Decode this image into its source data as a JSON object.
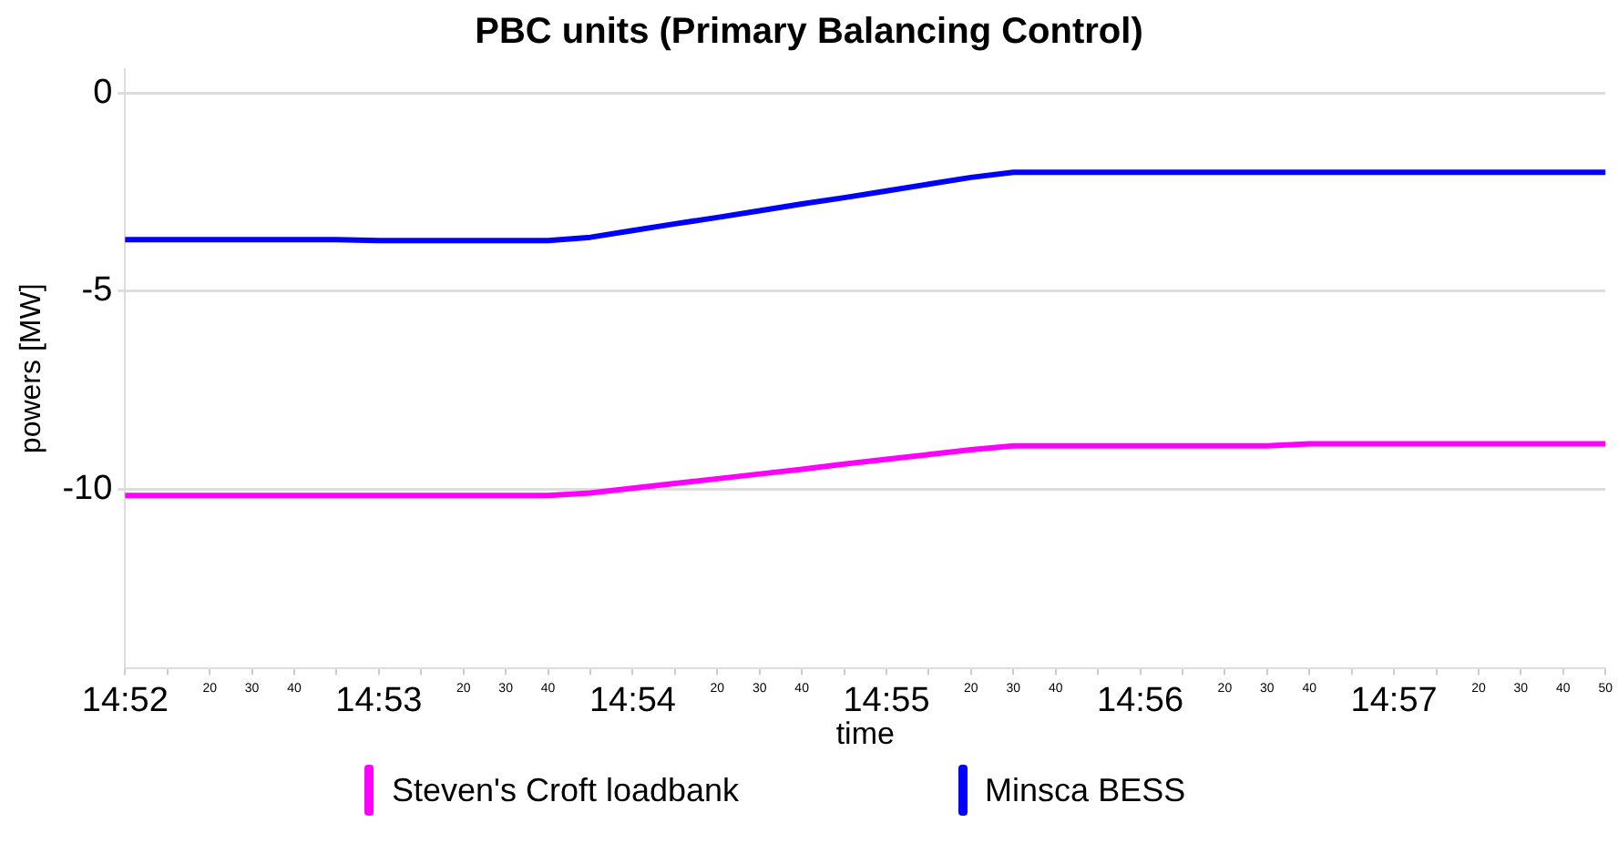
{
  "chart_data": {
    "type": "line",
    "title": "PBC units (Primary Balancing Control)",
    "xlabel": "time",
    "ylabel": "powers [MW]",
    "ylim": [
      -14.5,
      0.6
    ],
    "yticks": [
      0,
      -5,
      -10
    ],
    "categories": [
      "14:52",
      null,
      "20",
      "30",
      "40",
      null,
      "14:53",
      null,
      "20",
      "30",
      "40",
      null,
      "14:54",
      null,
      "20",
      "30",
      "40",
      null,
      "14:55",
      null,
      "20",
      "30",
      "40",
      null,
      "14:56",
      null,
      "20",
      "30",
      "40",
      null,
      "14:57",
      null,
      "20",
      "30",
      "40",
      "50"
    ],
    "series": [
      {
        "name": "Steven's Croft loadbank",
        "color": "#ff00ff",
        "values": [
          -10.15,
          -10.15,
          -10.15,
          -10.15,
          -10.15,
          -10.15,
          -10.15,
          -10.15,
          -10.15,
          -10.15,
          -10.15,
          -10.09,
          -9.97,
          -9.85,
          -9.73,
          -9.61,
          -9.49,
          -9.36,
          -9.24,
          -9.12,
          -9.0,
          -8.9,
          -8.9,
          -8.9,
          -8.9,
          -8.9,
          -8.9,
          -8.9,
          -8.85,
          -8.85,
          -8.85,
          -8.85,
          -8.85,
          -8.85,
          -8.85,
          -8.85
        ]
      },
      {
        "name": "Minsca BESS",
        "color": "#0000ff",
        "values": [
          -3.7,
          -3.7,
          -3.7,
          -3.7,
          -3.7,
          -3.7,
          -3.72,
          -3.72,
          -3.72,
          -3.72,
          -3.72,
          -3.64,
          -3.47,
          -3.3,
          -3.14,
          -2.97,
          -2.8,
          -2.64,
          -2.47,
          -2.3,
          -2.13,
          -2.0,
          -2.0,
          -2.0,
          -2.0,
          -2.0,
          -2.0,
          -2.0,
          -2.0,
          -2.0,
          -2.0,
          -2.0,
          -2.0,
          -2.0,
          -2.0,
          -2.0
        ]
      }
    ],
    "grid": "y",
    "legend": "bottom",
    "marker": "none",
    "line_style": "solid"
  }
}
